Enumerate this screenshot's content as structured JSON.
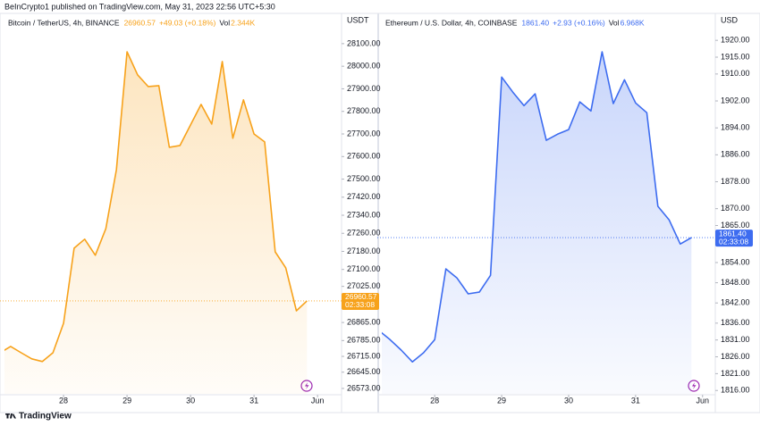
{
  "header": "BeInCrypto1 published on TradingView.com, May 31, 2023 22:56 UTC+5:30",
  "footer": "TradingView",
  "chart_data": [
    {
      "type": "area",
      "title": "Bitcoin / TetherUS, 4h, BINANCE",
      "price_label": "26960.57",
      "change": "+49.03 (+0.18%)",
      "volume_label": "Vol",
      "volume": "2.344K",
      "unit": "USDT",
      "countdown": "02:33:08",
      "color": "#f7a21b",
      "x": [
        27,
        27.1667,
        27.3333,
        27.5,
        27.6667,
        27.8333,
        28,
        28.1667,
        28.3333,
        28.5,
        28.6667,
        28.8333,
        29,
        29.1667,
        29.3333,
        29.5,
        29.6667,
        29.8333,
        30,
        30.1667,
        30.3333,
        30.5,
        30.6667,
        30.8333,
        31,
        31.1667,
        31.3333,
        31.5,
        31.6667,
        31.8333
      ],
      "values": [
        26731,
        26759,
        26731,
        26704,
        26692,
        26731,
        26862,
        27194,
        27234,
        27163,
        27281,
        27542,
        28064,
        27962,
        27910,
        27914,
        27641,
        27649,
        27740,
        27831,
        27744,
        28021,
        27681,
        27851,
        27700,
        27665,
        27178,
        27107,
        26917,
        26960.57
      ],
      "xlim": [
        27.07,
        32.35
      ],
      "xticks": [
        28,
        29,
        30,
        31,
        {
          "value": 32,
          "label": "Jun"
        }
      ],
      "ylim": [
        26549,
        28234
      ],
      "yticks": [
        {
          "value": 28100,
          "label": "28100.00"
        },
        {
          "value": 28000,
          "label": "28000.00"
        },
        {
          "value": 27900,
          "label": "27900.00"
        },
        {
          "value": 27800,
          "label": "27800.00"
        },
        {
          "value": 27700,
          "label": "27700.00"
        },
        {
          "value": 27600,
          "label": "27600.00"
        },
        {
          "value": 27500,
          "label": "27500.00"
        },
        {
          "value": 27420,
          "label": "27420.00"
        },
        {
          "value": 27340,
          "label": "27340.00"
        },
        {
          "value": 27260,
          "label": "27260.00"
        },
        {
          "value": 27180,
          "label": "27180.00"
        },
        {
          "value": 27100,
          "label": "27100.00"
        },
        {
          "value": 27025,
          "label": "27025.00"
        },
        {
          "value": 26865,
          "label": "26865.00"
        },
        {
          "value": 26785,
          "label": "26785.00"
        },
        {
          "value": 26715,
          "label": "26715.00"
        },
        {
          "value": 26645,
          "label": "26645.00"
        },
        {
          "value": 26573,
          "label": "26573.00"
        }
      ],
      "grid": false
    },
    {
      "type": "area",
      "title": "Ethereum / U.S. Dollar, 4h, COINBASE",
      "price_label": "1861.40",
      "change": "+2.93 (+0.16%)",
      "volume_label": "Vol",
      "volume": "6.968K",
      "unit": "USD",
      "countdown": "02:33:08",
      "color": "#3d6cf0",
      "x": [
        27.1667,
        27.3333,
        27.5,
        27.6667,
        27.8333,
        28,
        28.1667,
        28.3333,
        28.5,
        28.6667,
        28.8333,
        29,
        29.1667,
        29.3333,
        29.5,
        29.6667,
        29.8333,
        30,
        30.1667,
        30.3333,
        30.5,
        30.6667,
        30.8333,
        31,
        31.1667,
        31.3333,
        31.5,
        31.6667,
        31.8333
      ],
      "values": [
        1833.8,
        1831.1,
        1828.0,
        1824.5,
        1827.2,
        1831.1,
        1852.1,
        1849.4,
        1844.7,
        1845.2,
        1850.2,
        1909.1,
        1904.6,
        1900.6,
        1904.1,
        1890.3,
        1892.1,
        1893.5,
        1901.7,
        1899.0,
        1916.6,
        1901.2,
        1908.3,
        1901.4,
        1898.5,
        1870.7,
        1866.7,
        1859.5,
        1861.4
      ],
      "xlim": [
        27.21,
        32.15
      ],
      "xticks": [
        28,
        29,
        30,
        31,
        {
          "value": 32,
          "label": "Jun"
        }
      ],
      "ylim": [
        1815,
        1928
      ],
      "yticks": [
        {
          "value": 1920,
          "label": "1920.00"
        },
        {
          "value": 1915,
          "label": "1915.00"
        },
        {
          "value": 1910,
          "label": "1910.00"
        },
        {
          "value": 1902,
          "label": "1902.00"
        },
        {
          "value": 1894,
          "label": "1894.00"
        },
        {
          "value": 1886,
          "label": "1886.00"
        },
        {
          "value": 1878,
          "label": "1878.00"
        },
        {
          "value": 1870,
          "label": "1870.00"
        },
        {
          "value": 1865,
          "label": "1865.00"
        },
        {
          "value": 1854,
          "label": "1854.00"
        },
        {
          "value": 1848,
          "label": "1848.00"
        },
        {
          "value": 1842,
          "label": "1842.00"
        },
        {
          "value": 1836,
          "label": "1836.00"
        },
        {
          "value": 1831,
          "label": "1831.00"
        },
        {
          "value": 1826,
          "label": "1826.00"
        },
        {
          "value": 1821,
          "label": "1821.00"
        },
        {
          "value": 1816,
          "label": "1816.00"
        }
      ],
      "grid": false
    }
  ]
}
